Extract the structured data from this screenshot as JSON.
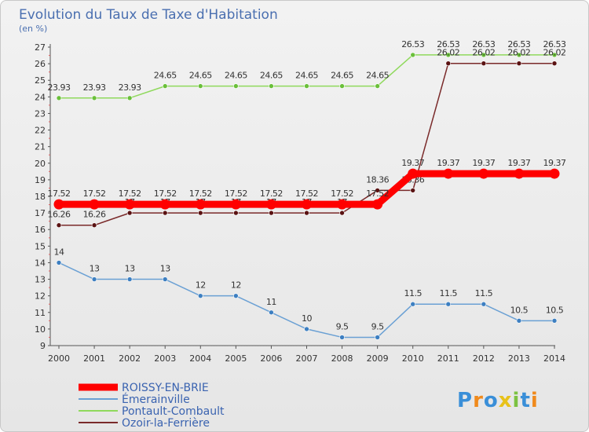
{
  "chart_data": {
    "type": "line",
    "title": "Evolution du Taux de Taxe d'Habitation",
    "subtitle": "(en %)",
    "xlabel": "",
    "ylabel": "",
    "x": [
      "2000",
      "2001",
      "2002",
      "2003",
      "2004",
      "2005",
      "2006",
      "2007",
      "2008",
      "2009",
      "2010",
      "2011",
      "2012",
      "2013",
      "2014"
    ],
    "ylim": [
      9,
      27
    ],
    "yticks": [
      9,
      10,
      11,
      12,
      13,
      14,
      15,
      16,
      17,
      18,
      19,
      20,
      21,
      22,
      23,
      24,
      25,
      26,
      27
    ],
    "grid": false,
    "legend_position": "bottom-left",
    "series": [
      {
        "name": "Pontault-Combault",
        "color": "#8fd95c",
        "marker_color": "#6abf3a",
        "values": [
          23.93,
          23.93,
          23.93,
          24.65,
          24.65,
          24.65,
          24.65,
          24.65,
          24.65,
          24.65,
          26.53,
          26.53,
          26.53,
          26.53,
          26.53
        ],
        "labels": [
          "23.93",
          "23.93",
          "23.93",
          "24.65",
          "24.65",
          "24.65",
          "24.65",
          "24.65",
          "24.65",
          "24.65",
          "26.53",
          "26.53",
          "26.53",
          "26.53",
          "26.53"
        ]
      },
      {
        "name": "Ozoir-la-Ferrière",
        "color": "#7a2a2a",
        "marker_color": "#5a1212",
        "values": [
          16.26,
          16.26,
          17,
          17,
          17,
          17,
          17,
          17,
          17,
          18.36,
          18.36,
          26.02,
          26.02,
          26.02,
          26.02
        ],
        "labels": [
          "16.26",
          "16.26",
          "17",
          "17",
          "17",
          "17",
          "17",
          "17",
          "17",
          "18.36",
          "18.36",
          "26.02",
          "26.02",
          "26.02",
          "26.02"
        ]
      },
      {
        "name": "Émerainville",
        "color": "#6aa0d4",
        "marker_color": "#3d7fc1",
        "values": [
          14,
          13,
          13,
          13,
          12,
          12,
          11,
          10,
          9.5,
          9.5,
          11.5,
          11.5,
          11.5,
          10.5,
          10.5
        ],
        "labels": [
          "14",
          "13",
          "13",
          "13",
          "12",
          "12",
          "11",
          "10",
          "9.5",
          "9.5",
          "11.5",
          "11.5",
          "11.5",
          "10.5",
          "10.5"
        ]
      },
      {
        "name": "ROISSY-EN-BRIE",
        "color": "#ff0000",
        "marker_color": "#ff0000",
        "values": [
          17.52,
          17.52,
          17.52,
          17.52,
          17.52,
          17.52,
          17.52,
          17.52,
          17.52,
          17.52,
          19.37,
          19.37,
          19.37,
          19.37,
          19.37
        ],
        "labels": [
          "17.52",
          "17.52",
          "17.52",
          "17.52",
          "17.52",
          "17.52",
          "17.52",
          "17.52",
          "17.52",
          "17.52",
          "19.37",
          "19.37",
          "19.37",
          "19.37",
          "19.37"
        ]
      }
    ],
    "legend": [
      {
        "name": "ROISSY-EN-BRIE",
        "color": "#ff0000"
      },
      {
        "name": "Émerainville",
        "color": "#6aa0d4"
      },
      {
        "name": "Pontault-Combault",
        "color": "#8fd95c"
      },
      {
        "name": "Ozoir-la-Ferrière",
        "color": "#7a2a2a"
      }
    ]
  },
  "brand": {
    "logo_text": "Proxiti",
    "letters": [
      "P",
      "r",
      "o",
      "x",
      "i",
      "t",
      "i"
    ],
    "letter_colors": [
      "#3a8fd8",
      "#f08a1c",
      "#3a8fd8",
      "#e8c21a",
      "#7cc242",
      "#3a8fd8",
      "#f08a1c"
    ]
  }
}
